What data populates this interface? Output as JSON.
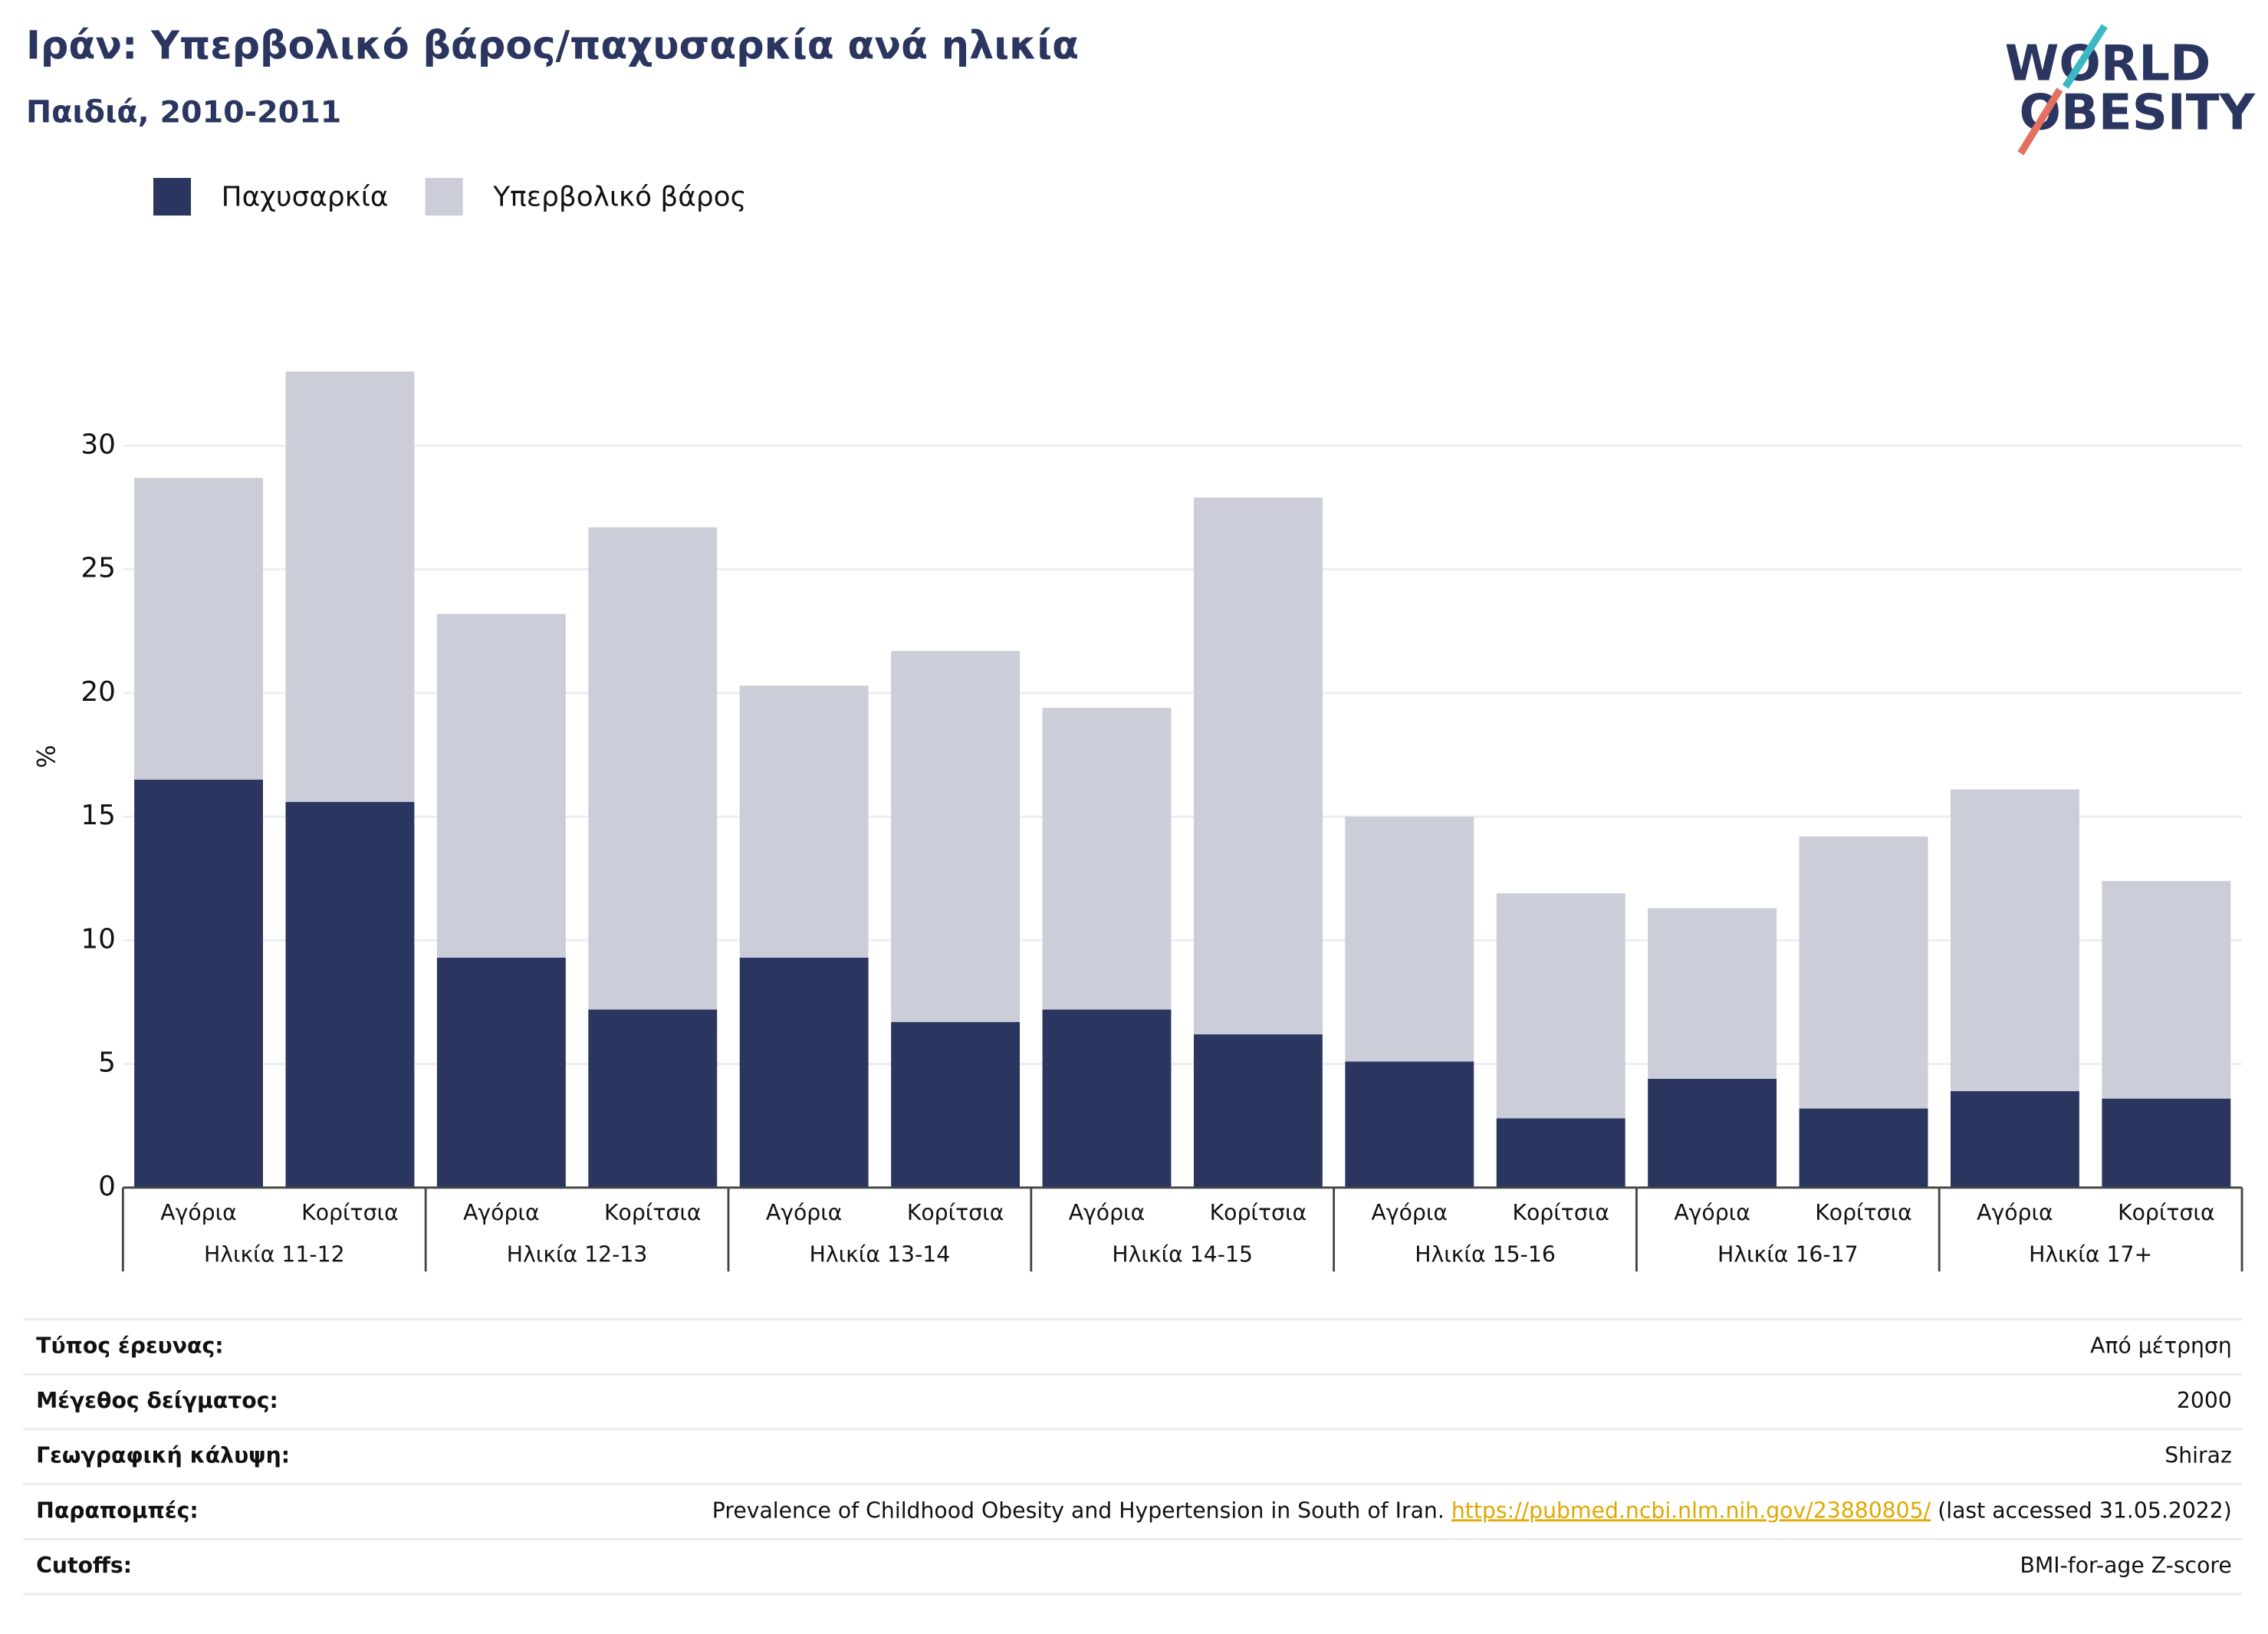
{
  "logo": {
    "line1": "WORLD",
    "line2": "OBESITY"
  },
  "chart_data": {
    "type": "stacked_bar",
    "title": "Ιράν: Υπερβολικό βάρος/παχυσαρκία ανά ηλικία",
    "subtitle": "Παιδιά, 2010-2011",
    "y_label": "%",
    "categories": [
      "Αγόρια",
      "Κορίτσια",
      "Αγόρια",
      "Κορίτσια",
      "Αγόρια",
      "Κορίτσια",
      "Αγόρια",
      "Κορίτσια",
      "Αγόρια",
      "Κορίτσια",
      "Αγόρια",
      "Κορίτσια",
      "Αγόρια",
      "Κορίτσια"
    ],
    "groups": [
      "Ηλικία 11-12",
      "Ηλικία 12-13",
      "Ηλικία 13-14",
      "Ηλικία 14-15",
      "Ηλικία 15-16",
      "Ηλικία 16-17",
      "Ηλικία 17+"
    ],
    "series": [
      {
        "name": "Παχυσαρκία",
        "color": "#2b3660",
        "values": [
          16.5,
          15.6,
          9.3,
          7.2,
          9.3,
          6.7,
          7.2,
          6.2,
          5.1,
          2.8,
          4.4,
          3.2,
          3.9,
          3.6
        ]
      },
      {
        "name": "Υπερβολικό βάρος",
        "color": "#cbcdd8",
        "values": [
          12.2,
          17.4,
          13.9,
          19.5,
          11.0,
          15.0,
          12.2,
          21.7,
          9.9,
          9.1,
          6.9,
          11.0,
          12.2,
          8.8
        ]
      }
    ],
    "ylim": [
      0,
      33.4
    ],
    "yticks": [
      0,
      5,
      10,
      15,
      20,
      25,
      30
    ],
    "grid": true,
    "legend": "top-left"
  },
  "info": {
    "rows": [
      {
        "label": "Τύπος έρευνας:",
        "value": "Από μέτρηση"
      },
      {
        "label": "Μέγεθος δείγματος:",
        "value": "2000"
      },
      {
        "label": "Γεωγραφική κάλυψη:",
        "value": "Shiraz"
      },
      {
        "label": "Παραπομπές:",
        "value": "Prevalence of Childhood Obesity and Hypertension in South of Iran. ",
        "link": "https://pubmed.ncbi.nlm.nih.gov/23880805/",
        "suffix": " (last accessed 31.05.2022)"
      },
      {
        "label": "Cutoffs:",
        "value": "BMI-for-age Z-score"
      }
    ]
  }
}
